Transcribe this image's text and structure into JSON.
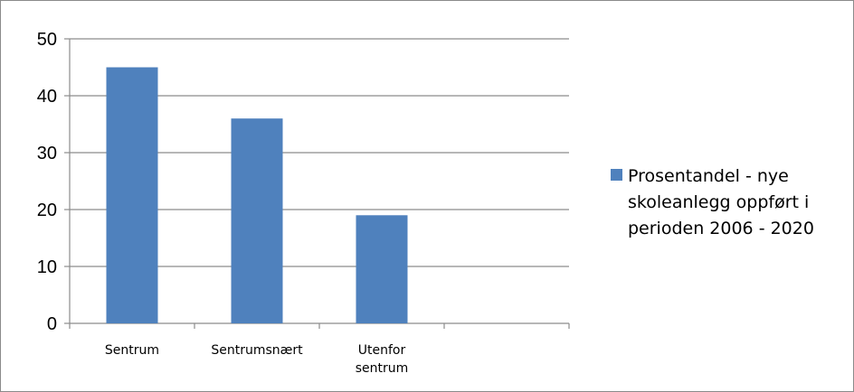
{
  "chart_data": {
    "type": "bar",
    "categories": [
      [
        "Sentrum"
      ],
      [
        "Sentrumsnært"
      ],
      [
        "Utenfor",
        "sentrum"
      ],
      [
        ""
      ]
    ],
    "series": [
      {
        "name": "Prosentandel - nye skoleanlegg oppført i perioden 2006 - 2020",
        "name_lines": [
          "Prosentandel - nye",
          "skoleanlegg oppført i",
          "perioden 2006 - 2020"
        ],
        "values": [
          45,
          36,
          19,
          null
        ],
        "color": "#4f81bd"
      }
    ],
    "ylim": [
      0,
      50
    ],
    "yticks": [
      0,
      10,
      20,
      30,
      40,
      50
    ],
    "grid": true,
    "legend": "right"
  }
}
